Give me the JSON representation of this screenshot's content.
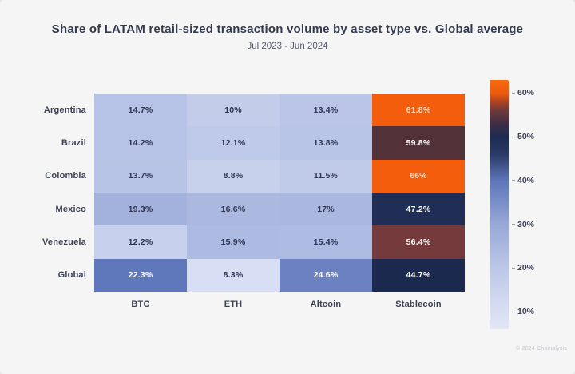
{
  "header": {
    "title": "Share of LATAM retail-sized transaction volume by asset type vs. Global average",
    "subtitle": "Jul 2023 - Jun 2024"
  },
  "chart_data": {
    "type": "heatmap",
    "rows": [
      "Argentina",
      "Brazil",
      "Colombia",
      "Mexico",
      "Venezuela",
      "Global"
    ],
    "columns": [
      "BTC",
      "ETH",
      "Altcoin",
      "Stablecoin"
    ],
    "values": [
      [
        14.7,
        10,
        13.4,
        61.8
      ],
      [
        14.2,
        12.1,
        13.8,
        59.8
      ],
      [
        13.7,
        8.8,
        11.5,
        66
      ],
      [
        19.3,
        16.6,
        17,
        47.2
      ],
      [
        12.2,
        15.9,
        15.4,
        56.4
      ],
      [
        22.3,
        8.3,
        24.6,
        44.7
      ]
    ],
    "cell_labels": [
      [
        "14.7%",
        "10%",
        "13.4%",
        "61.8%"
      ],
      [
        "14.2%",
        "12.1%",
        "13.8%",
        "59.8%"
      ],
      [
        "13.7%",
        "8.8%",
        "11.5%",
        "66%"
      ],
      [
        "19.3%",
        "16.6%",
        "17%",
        "47.2%"
      ],
      [
        "12.2%",
        "15.9%",
        "15.4%",
        "56.4%"
      ],
      [
        "22.3%",
        "8.3%",
        "24.6%",
        "44.7%"
      ]
    ],
    "cell_colors": [
      [
        "#b7c3e6",
        "#c3cdea",
        "#bac5e7",
        "#f45d0c"
      ],
      [
        "#b7c3e6",
        "#bfc9e9",
        "#b9c5e7",
        "#533138"
      ],
      [
        "#b8c4e6",
        "#c8d1ec",
        "#c0cae9",
        "#f45d0c"
      ],
      [
        "#a3b2dd",
        "#abb9e0",
        "#aab8e0",
        "#202e55"
      ],
      [
        "#c7d0ed",
        "#adbae1",
        "#aebbe2",
        "#743a3c"
      ],
      [
        "#5f78bb",
        "#d8def3",
        "#6c81c2",
        "#1b294e"
      ]
    ],
    "text_on_dark": "#ffffff",
    "text_on_orange": "#ffd9c4",
    "text_on_light": "#2e3452",
    "colorbar": {
      "min": 6,
      "max": 63,
      "ticks": [
        {
          "label": "60%",
          "value": 60
        },
        {
          "label": "50%",
          "value": 50
        },
        {
          "label": "40%",
          "value": 40
        },
        {
          "label": "30%",
          "value": 30
        },
        {
          "label": "20%",
          "value": 20
        },
        {
          "label": "10%",
          "value": 10
        }
      ],
      "stops": [
        {
          "value": 63,
          "color": "#f7690c"
        },
        {
          "value": 60,
          "color": "#ee5a0e"
        },
        {
          "value": 58,
          "color": "#b04422"
        },
        {
          "value": 56,
          "color": "#6e3a3b"
        },
        {
          "value": 53,
          "color": "#402e45"
        },
        {
          "value": 50,
          "color": "#1d2b50"
        },
        {
          "value": 46,
          "color": "#2a3a66"
        },
        {
          "value": 40,
          "color": "#5d76ba"
        },
        {
          "value": 30,
          "color": "#98a8d6"
        },
        {
          "value": 20,
          "color": "#bcc7e7"
        },
        {
          "value": 12,
          "color": "#d3daf0"
        },
        {
          "value": 6,
          "color": "#e2e7f6"
        }
      ]
    }
  },
  "footer": {
    "attribution": "© 2024 Chainalysis"
  }
}
